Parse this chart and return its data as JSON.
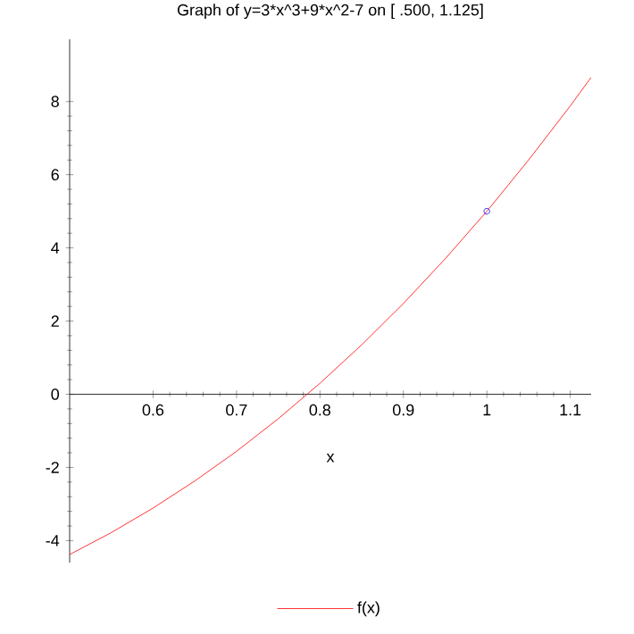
{
  "chart_data": {
    "type": "line",
    "title": "Graph of y=3*x^3+9*x^2-7 on [  .500, 1.125]",
    "xlabel": "x",
    "xlim": [
      0.5,
      1.125
    ],
    "ylim": [
      -4.6,
      9.7
    ],
    "xticks": [
      0.6,
      0.7,
      0.8,
      0.9,
      1,
      1.1
    ],
    "yticks": [
      -4,
      -2,
      0,
      2,
      4,
      6,
      8
    ],
    "grid": false,
    "legend": "bottom",
    "series": [
      {
        "name": "f(x)",
        "color": "#ff0000",
        "x": [
          0.5,
          0.55,
          0.6,
          0.65,
          0.7,
          0.75,
          0.8,
          0.85,
          0.9,
          0.95,
          1.0,
          1.05,
          1.1,
          1.125
        ],
        "values": [
          -4.38,
          -3.78,
          -3.11,
          -2.37,
          -1.56,
          -0.67,
          0.3,
          1.35,
          2.48,
          3.7,
          5.0,
          6.4,
          7.88,
          8.66
        ]
      },
      {
        "type": "scatter",
        "marker": "circle",
        "color": "#0000ff",
        "x": [
          1.0
        ],
        "values": [
          5.0
        ]
      }
    ]
  }
}
